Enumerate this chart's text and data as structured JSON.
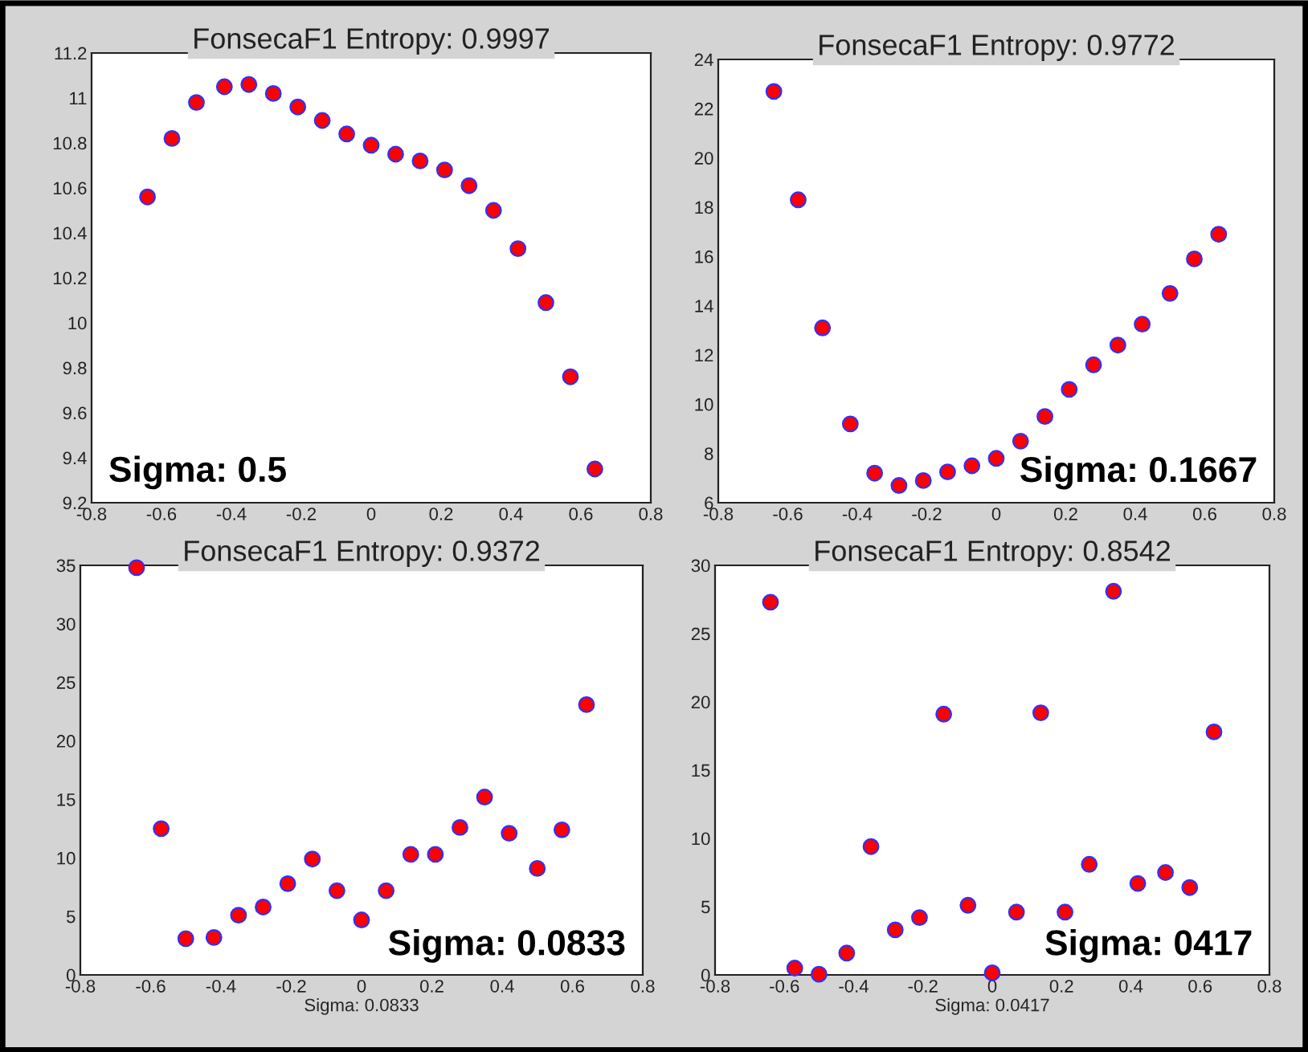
{
  "chart_data": [
    {
      "type": "scatter",
      "title": "FonsecaF1 Entropy: 0.9997",
      "annotations": [
        "Sigma: 0.5"
      ],
      "marker": "circle",
      "grid": false,
      "xlim": [
        -0.8,
        0.8
      ],
      "xticks": [
        -0.8,
        -0.6,
        -0.4,
        -0.2,
        0,
        0.2,
        0.4,
        0.6,
        0.8
      ],
      "ylim": [
        9.2,
        11.2
      ],
      "yticks": [
        9.2,
        9.4,
        9.6,
        9.8,
        10,
        10.2,
        10.4,
        10.6,
        10.8,
        11,
        11.2
      ],
      "x": [
        -0.64,
        -0.57,
        -0.5,
        -0.42,
        -0.35,
        -0.28,
        -0.21,
        -0.14,
        -0.07,
        0,
        0.07,
        0.14,
        0.21,
        0.28,
        0.35,
        0.42,
        0.5,
        0.57,
        0.64
      ],
      "series": [
        {
          "color": "#ff0000",
          "values": [
            10.56,
            10.82,
            10.98,
            11.05,
            11.06,
            11.02,
            10.96,
            10.9,
            10.84,
            10.79,
            10.75,
            10.72,
            10.68,
            10.61,
            10.5,
            10.33,
            10.09,
            9.76,
            9.35
          ]
        }
      ]
    },
    {
      "type": "scatter",
      "title": "FonsecaF1 Entropy: 0.9772",
      "annotations": [
        "Sigma: 0.1667"
      ],
      "marker": "circle",
      "grid": false,
      "xlim": [
        -0.8,
        0.8
      ],
      "xticks": [
        -0.8,
        -0.6,
        -0.4,
        -0.2,
        0,
        0.2,
        0.4,
        0.6,
        0.8
      ],
      "ylim": [
        6,
        24
      ],
      "yticks": [
        6,
        8,
        10,
        12,
        14,
        16,
        18,
        20,
        22,
        24
      ],
      "x": [
        -0.64,
        -0.57,
        -0.5,
        -0.42,
        -0.35,
        -0.28,
        -0.21,
        -0.14,
        -0.07,
        0,
        0.07,
        0.14,
        0.21,
        0.28,
        0.35,
        0.42,
        0.5,
        0.57,
        0.64
      ],
      "series": [
        {
          "color": "#ff0000",
          "values": [
            22.7,
            18.3,
            13.1,
            9.2,
            7.2,
            6.7,
            6.9,
            7.25,
            7.5,
            7.8,
            8.5,
            9.5,
            10.6,
            11.6,
            12.4,
            13.25,
            14.5,
            15.9,
            16.9
          ]
        }
      ]
    },
    {
      "type": "scatter",
      "title": "FonsecaF1 Entropy: 0.9372",
      "xlabel": "Sigma: 0.0833",
      "annotations": [
        "Sigma: 0.0833"
      ],
      "marker": "circle",
      "grid": false,
      "xlim": [
        -0.8,
        0.8
      ],
      "xticks": [
        -0.8,
        -0.6,
        -0.4,
        -0.2,
        0,
        0.2,
        0.4,
        0.6,
        0.8
      ],
      "ylim": [
        0,
        35
      ],
      "yticks": [
        0,
        5,
        10,
        15,
        20,
        25,
        30,
        35
      ],
      "x": [
        -0.64,
        -0.57,
        -0.5,
        -0.42,
        -0.35,
        -0.28,
        -0.21,
        -0.14,
        -0.07,
        0,
        0.07,
        0.14,
        0.21,
        0.28,
        0.35,
        0.42,
        0.5,
        0.57,
        0.64
      ],
      "series": [
        {
          "color": "#ff0000",
          "values": [
            34.8,
            12.5,
            3.1,
            3.2,
            5.1,
            5.8,
            7.8,
            9.9,
            7.2,
            4.7,
            7.2,
            10.3,
            10.3,
            12.6,
            15.2,
            12.1,
            9.1,
            12.4,
            23.1
          ]
        }
      ]
    },
    {
      "type": "scatter",
      "title": "FonsecaF1 Entropy: 0.8542",
      "xlabel": "Sigma: 0.0417",
      "annotations": [
        "Sigma: 0417"
      ],
      "marker": "circle",
      "grid": false,
      "xlim": [
        -0.8,
        0.8
      ],
      "xticks": [
        -0.8,
        -0.6,
        -0.4,
        -0.2,
        0,
        0.2,
        0.4,
        0.6,
        0.8
      ],
      "ylim": [
        0,
        30
      ],
      "yticks": [
        0,
        5,
        10,
        15,
        20,
        25,
        30
      ],
      "x": [
        -0.64,
        -0.57,
        -0.5,
        -0.42,
        -0.35,
        -0.28,
        -0.21,
        -0.14,
        -0.07,
        0,
        0.07,
        0.14,
        0.21,
        0.28,
        0.35,
        0.42,
        0.5,
        0.57,
        0.64
      ],
      "series": [
        {
          "color": "#ff0000",
          "values": [
            27.3,
            0.5,
            0.05,
            1.6,
            9.4,
            3.3,
            4.2,
            19.1,
            5.1,
            0.15,
            4.6,
            19.2,
            4.6,
            8.1,
            28.1,
            6.7,
            7.5,
            6.4,
            17.8
          ]
        }
      ]
    }
  ]
}
